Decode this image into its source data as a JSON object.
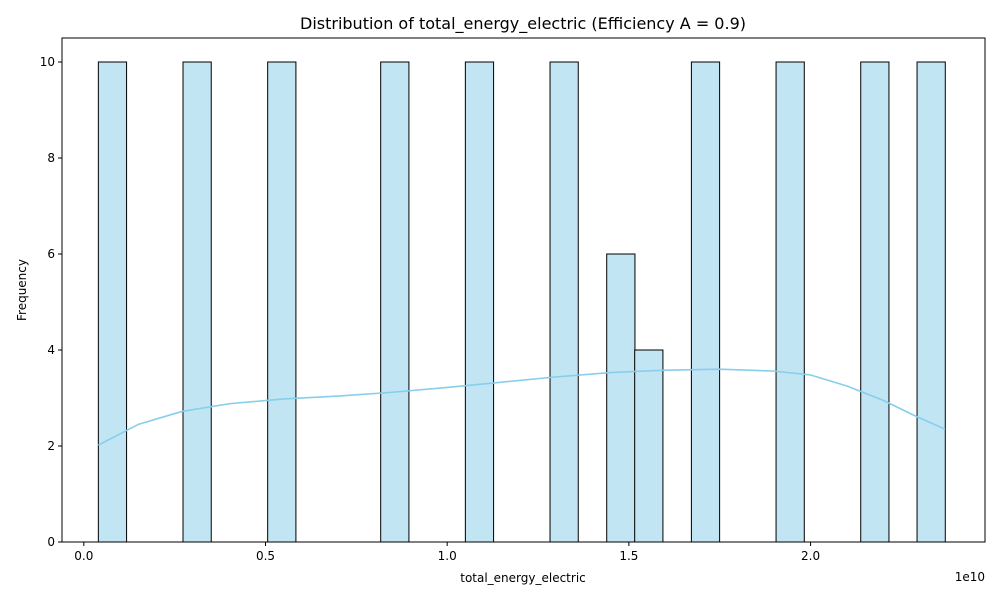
{
  "chart_data": {
    "type": "bar",
    "title": "Distribution of total_energy_electric (Efficiency A = 0.9)",
    "xlabel": "total_energy_electric",
    "ylabel": "Frequency",
    "x_offset_label": "1e10",
    "xlim": [
      -0.06,
      2.48
    ],
    "ylim": [
      0,
      10.5
    ],
    "xticks": [
      {
        "value": 0.0,
        "label": "0.0"
      },
      {
        "value": 0.5,
        "label": "0.5"
      },
      {
        "value": 1.0,
        "label": "1.0"
      },
      {
        "value": 1.5,
        "label": "1.5"
      },
      {
        "value": 2.0,
        "label": "2.0"
      }
    ],
    "yticks": [
      {
        "value": 0,
        "label": "0"
      },
      {
        "value": 2,
        "label": "2"
      },
      {
        "value": 4,
        "label": "4"
      },
      {
        "value": 6,
        "label": "6"
      },
      {
        "value": 8,
        "label": "8"
      },
      {
        "value": 10,
        "label": "10"
      }
    ],
    "bin_width": 0.0777,
    "bins": [
      {
        "start": 0.04,
        "count": 10
      },
      {
        "start": 0.273,
        "count": 10
      },
      {
        "start": 0.506,
        "count": 10
      },
      {
        "start": 0.817,
        "count": 10
      },
      {
        "start": 1.05,
        "count": 10
      },
      {
        "start": 1.283,
        "count": 10
      },
      {
        "start": 1.439,
        "count": 6
      },
      {
        "start": 1.516,
        "count": 4
      },
      {
        "start": 1.672,
        "count": 10
      },
      {
        "start": 1.905,
        "count": 10
      },
      {
        "start": 2.138,
        "count": 10
      },
      {
        "start": 2.293,
        "count": 10
      }
    ],
    "kde": {
      "x": [
        0.04,
        0.15,
        0.27,
        0.4,
        0.55,
        0.7,
        0.85,
        1.0,
        1.15,
        1.3,
        1.45,
        1.6,
        1.75,
        1.9,
        2.0,
        2.1,
        2.2,
        2.29,
        2.37
      ],
      "y": [
        2.02,
        2.45,
        2.72,
        2.88,
        2.98,
        3.04,
        3.12,
        3.22,
        3.33,
        3.44,
        3.53,
        3.58,
        3.6,
        3.56,
        3.48,
        3.25,
        2.95,
        2.62,
        2.35
      ]
    },
    "colors": {
      "bar_fill": "#c2e5f4",
      "bar_edge": "#000000",
      "kde_line": "#87ceeb"
    },
    "grid": false
  }
}
